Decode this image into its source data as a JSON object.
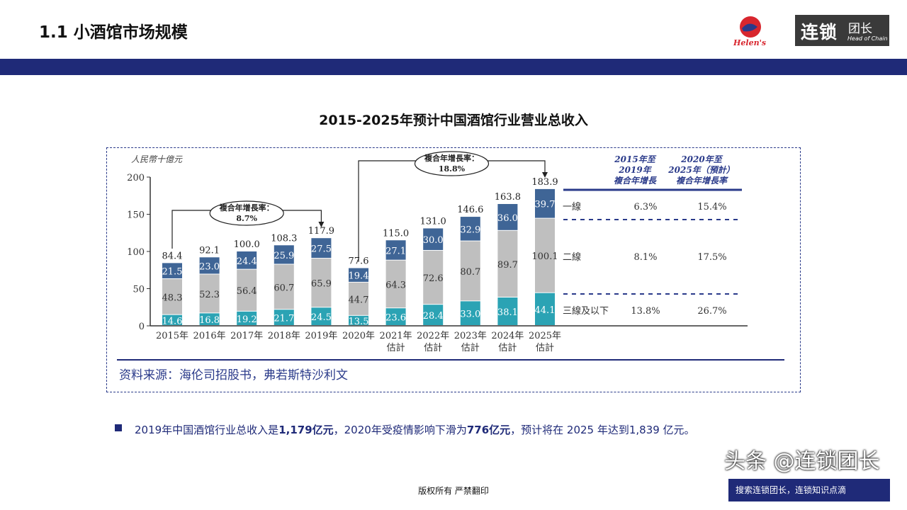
{
  "header": {
    "title": "1.1 小酒馆市场规模",
    "logo_left": "Helen's 海伦司小酒馆",
    "logo_right_main": "连锁",
    "logo_right_sub": "团长",
    "logo_right_en": "Head of Chain"
  },
  "colors": {
    "navy": "#1f2a78",
    "tier1": "#3f6596",
    "tier2": "#bfbfbf",
    "tier3": "#2ba3b4"
  },
  "chart_title": "2015-2025年预计中国酒馆行业营业总收入",
  "chart_data": {
    "type": "bar",
    "stacked": true,
    "ylabel": "人民幣十億元",
    "ylim": [
      0,
      200
    ],
    "yticks": [
      0,
      50,
      100,
      150,
      200
    ],
    "categories": [
      "2015年",
      "2016年",
      "2017年",
      "2018年",
      "2019年",
      "2020年",
      "2021年\n估計",
      "2022年\n估計",
      "2023年\n估計",
      "2024年\n估計",
      "2025年\n估計"
    ],
    "series": [
      {
        "name": "三線及以下",
        "values": [
          14.6,
          16.8,
          19.2,
          21.7,
          24.5,
          13.5,
          23.6,
          28.4,
          33.0,
          38.1,
          44.1
        ]
      },
      {
        "name": "二線",
        "values": [
          48.3,
          52.3,
          56.4,
          60.7,
          65.9,
          44.7,
          64.3,
          72.6,
          80.7,
          89.7,
          100.1
        ]
      },
      {
        "name": "一線",
        "values": [
          21.5,
          23.0,
          24.4,
          25.9,
          27.5,
          19.4,
          27.1,
          30.0,
          32.9,
          36.0,
          39.7
        ]
      }
    ],
    "totals": [
      "84.4",
      "92.1",
      "100.0",
      "108.3",
      "117.9",
      "77.6",
      "115.0",
      "131.0",
      "146.6",
      "163.8",
      "183.9"
    ],
    "annotations": [
      {
        "label": "複合年增長率：",
        "value": "8.7%",
        "from": "2015年",
        "to": "2019年"
      },
      {
        "label": "複合年增長率：",
        "value": "18.8%",
        "from": "2020年",
        "to": "2025年"
      }
    ],
    "table": {
      "headers": [
        "2015年至\n2019年\n複合年增長",
        "2020年至\n2025年（預計）\n複合年增長率"
      ],
      "rows": [
        {
          "tier": "一線",
          "a": "6.3%",
          "b": "15.4%"
        },
        {
          "tier": "二線",
          "a": "8.1%",
          "b": "17.5%"
        },
        {
          "tier": "三線及以下",
          "a": "13.8%",
          "b": "26.7%"
        }
      ]
    }
  },
  "source": "资料来源：海伦司招股书，弗若斯特沙利文",
  "note": {
    "p1": "2019年中国酒馆行业总收入是",
    "b1": "1,179亿元",
    "p2": "，2020年受疫情影响下滑为",
    "b2": "776亿元",
    "p3": "，预计将在 2025 年达到1,839 亿元。"
  },
  "footer": "版权所有 严禁翻印",
  "watermark": {
    "main": "头条 @连锁团长",
    "sub": "搜索连锁团长，连锁知识点滴"
  }
}
